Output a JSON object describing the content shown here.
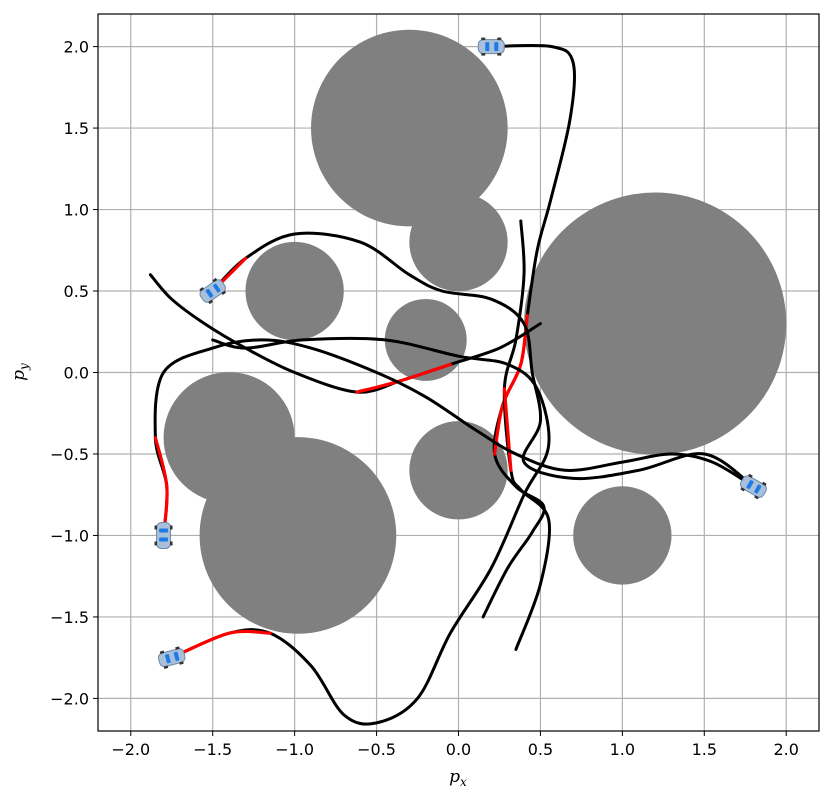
{
  "chart_data": {
    "type": "scatter",
    "title": "",
    "xlabel": "p",
    "xlabel_sub": "x",
    "ylabel": "p",
    "ylabel_sub": "y",
    "xlim": [
      -2.2,
      2.2
    ],
    "ylim": [
      -2.2,
      2.2
    ],
    "xticks": [
      -2.0,
      -1.5,
      -1.0,
      -0.5,
      0.0,
      0.5,
      1.0,
      1.5,
      2.0
    ],
    "yticks": [
      -2.0,
      -1.5,
      -1.0,
      -0.5,
      0.0,
      0.5,
      1.0,
      1.5,
      2.0
    ],
    "xtick_labels": [
      "−2.0",
      "−1.5",
      "−1.0",
      "−0.5",
      "0.0",
      "0.5",
      "1.0",
      "1.5",
      "2.0"
    ],
    "ytick_labels": [
      "−2.0",
      "−1.5",
      "−1.0",
      "−0.5",
      "0.0",
      "0.5",
      "1.0",
      "1.5",
      "2.0"
    ],
    "grid": true,
    "obstacle_color": "#808080",
    "path_color": "#000000",
    "highlight_color": "#ff0000",
    "car_body_color": "#a9c0da",
    "car_window_color": "#1e7ae6",
    "obstacles": [
      {
        "cx": -0.3,
        "cy": 1.5,
        "r": 0.6
      },
      {
        "cx": 0.0,
        "cy": 0.8,
        "r": 0.3
      },
      {
        "cx": 1.2,
        "cy": 0.3,
        "r": 0.8
      },
      {
        "cx": -1.0,
        "cy": 0.5,
        "r": 0.3
      },
      {
        "cx": -0.2,
        "cy": 0.2,
        "r": 0.25
      },
      {
        "cx": -1.4,
        "cy": -0.4,
        "r": 0.4
      },
      {
        "cx": -0.98,
        "cy": -1.0,
        "r": 0.6
      },
      {
        "cx": 0.0,
        "cy": -0.6,
        "r": 0.3
      },
      {
        "cx": 1.0,
        "cy": -1.0,
        "r": 0.3
      }
    ],
    "trajectories": [
      {
        "points": [
          [
            0.15,
            -1.5
          ],
          [
            0.3,
            -1.2
          ],
          [
            0.45,
            -0.98
          ],
          [
            0.52,
            -0.82
          ],
          [
            0.35,
            -0.7
          ],
          [
            0.22,
            -0.5
          ],
          [
            0.27,
            -0.2
          ],
          [
            0.38,
            0.05
          ],
          [
            0.42,
            0.35
          ],
          [
            0.48,
            0.75
          ],
          [
            0.56,
            1.05
          ],
          [
            0.68,
            1.55
          ],
          [
            0.7,
            1.9
          ],
          [
            0.57,
            2.0
          ],
          [
            0.2,
            2.0
          ]
        ],
        "red": [
          [
            0.22,
            -0.62
          ],
          [
            0.5,
            0.35
          ]
        ]
      },
      {
        "points": [
          [
            0.38,
            0.93
          ],
          [
            0.4,
            0.6
          ],
          [
            0.35,
            0.2
          ],
          [
            0.28,
            -0.1
          ],
          [
            0.32,
            -0.6
          ],
          [
            0.38,
            -0.72
          ],
          [
            0.55,
            -0.9
          ],
          [
            0.5,
            -1.3
          ],
          [
            0.35,
            -1.7
          ]
        ],
        "red": [
          [
            0.28,
            -0.1
          ],
          [
            0.32,
            -0.6
          ]
        ]
      },
      {
        "points": [
          [
            -1.88,
            0.6
          ],
          [
            -1.75,
            0.45
          ],
          [
            -1.55,
            0.3
          ],
          [
            -1.3,
            0.15
          ],
          [
            -1.0,
            0.0
          ],
          [
            -0.62,
            -0.12
          ],
          [
            -0.35,
            -0.05
          ],
          [
            -0.05,
            0.05
          ],
          [
            0.25,
            0.15
          ],
          [
            0.5,
            0.3
          ]
        ],
        "red": [
          [
            -0.62,
            -0.12
          ],
          [
            0.1,
            0.05
          ]
        ]
      },
      {
        "points": [
          [
            -1.5,
            0.5
          ],
          [
            -1.3,
            0.7
          ],
          [
            -1.0,
            0.85
          ],
          [
            -0.6,
            0.8
          ],
          [
            -0.3,
            0.6
          ],
          [
            -0.1,
            0.5
          ],
          [
            0.2,
            0.45
          ],
          [
            0.4,
            0.3
          ],
          [
            0.45,
            0.0
          ],
          [
            0.5,
            -0.3
          ],
          [
            0.4,
            -0.55
          ],
          [
            0.7,
            -0.65
          ],
          [
            1.1,
            -0.6
          ],
          [
            1.5,
            -0.5
          ],
          [
            1.8,
            -0.7
          ]
        ],
        "red": [
          [
            -1.5,
            0.5
          ],
          [
            -1.35,
            0.65
          ]
        ]
      },
      {
        "points": [
          [
            -1.8,
            -1.0
          ],
          [
            -1.78,
            -0.7
          ],
          [
            -1.85,
            -0.4
          ],
          [
            -1.8,
            0.0
          ],
          [
            -1.5,
            0.15
          ],
          [
            -1.2,
            0.2
          ],
          [
            -0.9,
            0.15
          ],
          [
            -0.5,
            0.0
          ],
          [
            -0.2,
            -0.15
          ],
          [
            0.1,
            -0.35
          ],
          [
            0.35,
            -0.5
          ],
          [
            0.65,
            -0.6
          ],
          [
            1.0,
            -0.55
          ],
          [
            1.3,
            -0.5
          ],
          [
            1.55,
            -0.55
          ],
          [
            1.8,
            -0.7
          ]
        ],
        "red": [
          [
            -1.8,
            -1.0
          ],
          [
            -1.78,
            -0.5
          ]
        ]
      },
      {
        "points": [
          [
            -1.75,
            -1.75
          ],
          [
            -1.4,
            -1.6
          ],
          [
            -1.15,
            -1.6
          ],
          [
            -0.9,
            -1.8
          ],
          [
            -0.7,
            -2.1
          ],
          [
            -0.5,
            -2.15
          ],
          [
            -0.25,
            -2.0
          ],
          [
            -0.05,
            -1.6
          ],
          [
            0.2,
            -1.2
          ],
          [
            0.4,
            -0.75
          ],
          [
            0.55,
            -0.45
          ],
          [
            0.48,
            -0.1
          ],
          [
            0.3,
            0.05
          ],
          [
            0.0,
            0.1
          ],
          [
            -0.45,
            0.2
          ],
          [
            -0.95,
            0.2
          ],
          [
            -1.3,
            0.15
          ],
          [
            -1.5,
            0.2
          ]
        ],
        "red": [
          [
            -1.75,
            -1.75
          ],
          [
            -1.15,
            -1.58
          ]
        ]
      }
    ],
    "cars": [
      {
        "x": 0.2,
        "y": 2.0,
        "heading": 0
      },
      {
        "x": -1.5,
        "y": 0.5,
        "heading": 35
      },
      {
        "x": -1.8,
        "y": -1.0,
        "heading": 90
      },
      {
        "x": -1.75,
        "y": -1.75,
        "heading": 15
      },
      {
        "x": 1.8,
        "y": -0.7,
        "heading": -30
      }
    ]
  }
}
